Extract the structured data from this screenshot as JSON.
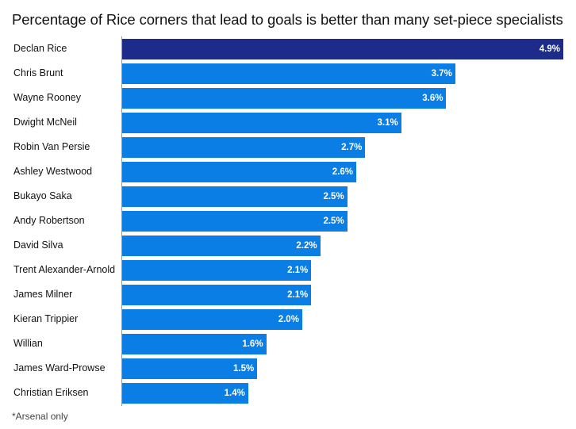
{
  "chart_data": {
    "type": "bar",
    "orientation": "horizontal",
    "title": "Percentage of Rice corners that lead to goals is better than many set-piece specialists",
    "categories": [
      "Declan Rice",
      "Chris Brunt",
      "Wayne Rooney",
      "Dwight McNeil",
      "Robin Van Persie",
      "Ashley Westwood",
      "Bukayo Saka",
      "Andy Robertson",
      "David Silva",
      "Trent Alexander-Arnold",
      "James Milner",
      "Kieran Trippier",
      "Willian",
      "James Ward-Prowse",
      "Christian Eriksen"
    ],
    "values": [
      4.9,
      3.7,
      3.6,
      3.1,
      2.7,
      2.6,
      2.5,
      2.5,
      2.2,
      2.1,
      2.1,
      2.0,
      1.6,
      1.5,
      1.4
    ],
    "value_labels": [
      "4.9%",
      "3.7%",
      "3.6%",
      "3.1%",
      "2.7%",
      "2.6%",
      "2.5%",
      "2.5%",
      "2.2%",
      "2.1%",
      "2.1%",
      "2.0%",
      "1.6%",
      "1.5%",
      "1.4%"
    ],
    "xlim": [
      0,
      4.9
    ],
    "unit": "%",
    "highlight_color": "#1d2b8a",
    "bar_color": "#0a7ee5",
    "footnote": "*Arsenal only"
  }
}
